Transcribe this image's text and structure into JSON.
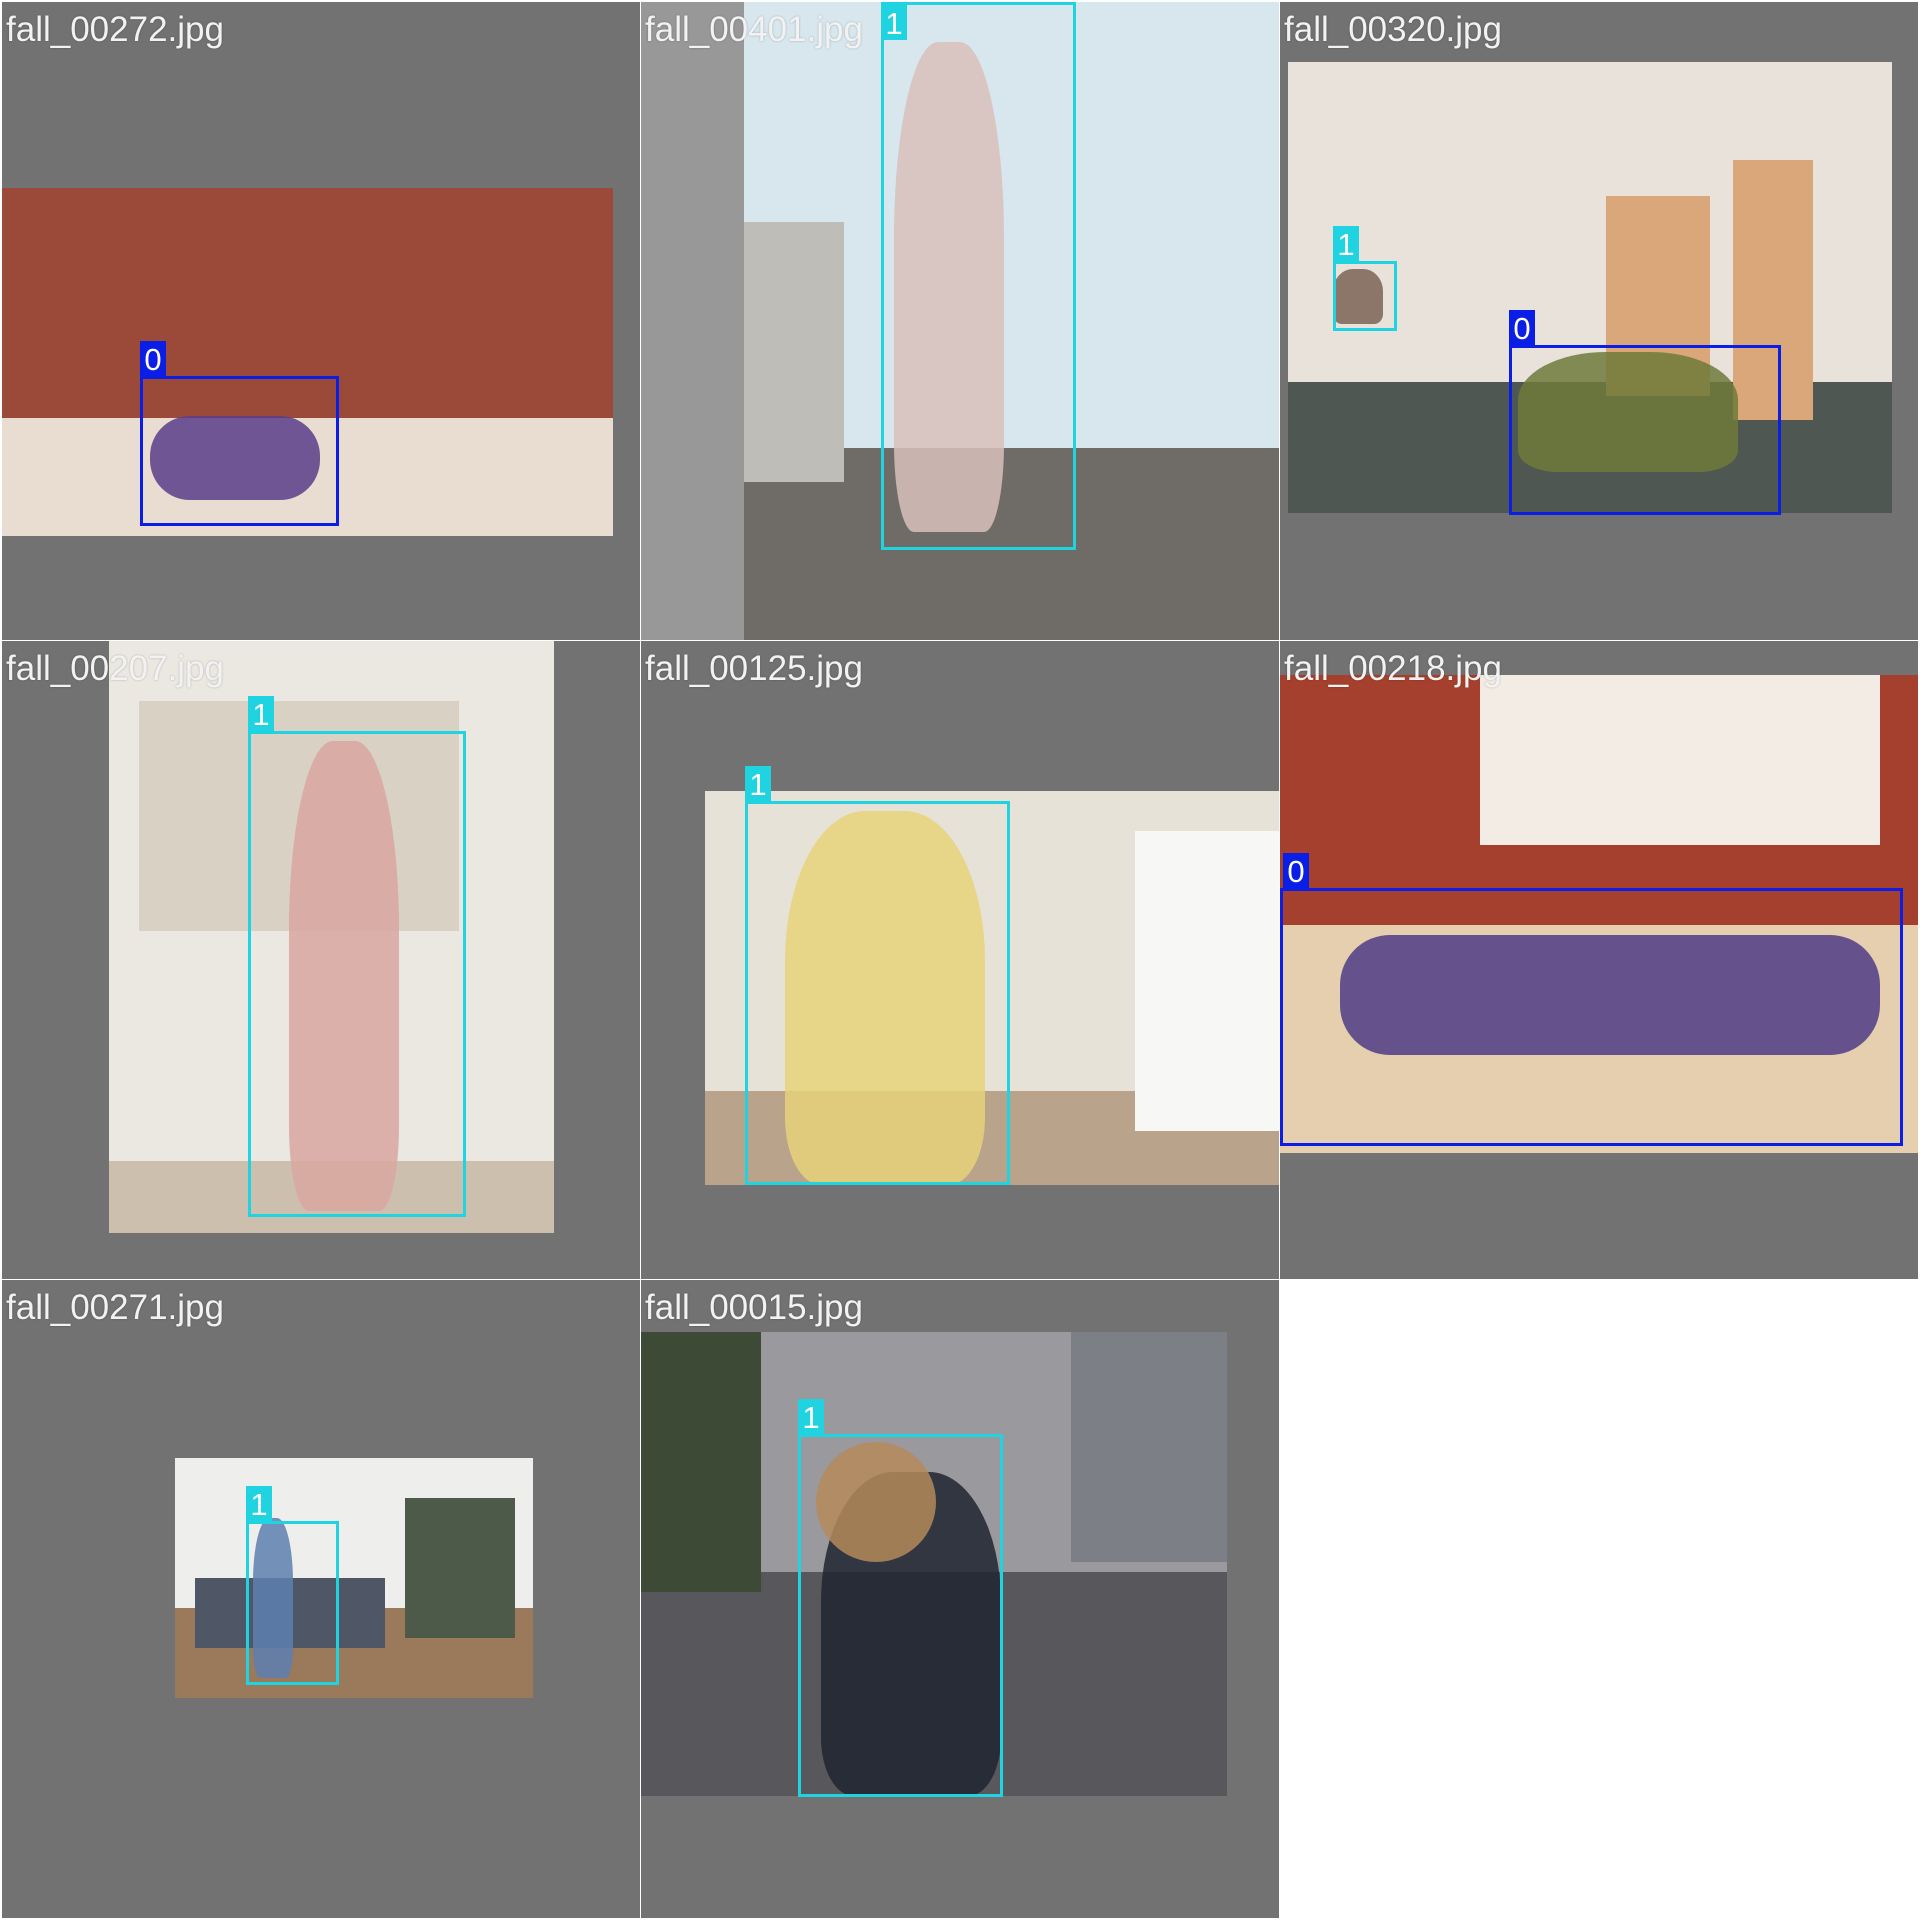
{
  "grid": {
    "columns": 3,
    "rows": 3,
    "tile_background": "#727272",
    "page_background": "#ffffff"
  },
  "classes": {
    "0": {
      "label": "0",
      "color": "#0b1ee6"
    },
    "1": {
      "label": "1",
      "color": "#1fd3e0"
    }
  },
  "tiles": [
    {
      "filename": "fall_00272.jpg",
      "scene": {
        "wall": "#9b4a3a",
        "floor": "#e8ddd0",
        "figure": "#5a3d8a"
      },
      "annotations": [
        {
          "class": "0"
        }
      ]
    },
    {
      "filename": "fall_00401.jpg",
      "scene": {
        "wall": "#d8e6ee",
        "floor": "#6f6c68",
        "figure": "#d9bfbb"
      },
      "annotations": [
        {
          "class": "1"
        }
      ]
    },
    {
      "filename": "fall_00320.jpg",
      "scene": {
        "wall": "#e9e2db",
        "floor": "#4f5753",
        "figure": "#6e7a3a"
      },
      "annotations": [
        {
          "class": "1"
        },
        {
          "class": "0"
        }
      ]
    },
    {
      "filename": "fall_00207.jpg",
      "scene": {
        "wall": "#ebe8e2",
        "floor": "#cdbfae",
        "figure": "#d8a6a0"
      },
      "annotations": [
        {
          "class": "1"
        }
      ]
    },
    {
      "filename": "fall_00125.jpg",
      "scene": {
        "wall": "#e7e2d7",
        "floor": "#b9a48b",
        "figure": "#e6d27a"
      },
      "annotations": [
        {
          "class": "1"
        }
      ]
    },
    {
      "filename": "fall_00218.jpg",
      "scene": {
        "wall": "#a6402e",
        "floor": "#e6cfae",
        "figure": "#4e3c86"
      },
      "annotations": [
        {
          "class": "0"
        }
      ]
    },
    {
      "filename": "fall_00271.jpg",
      "scene": {
        "wall": "#eeeeec",
        "floor": "#9a7a5a",
        "figure": "#5d7fb0"
      },
      "annotations": [
        {
          "class": "1"
        }
      ]
    },
    {
      "filename": "fall_00015.jpg",
      "scene": {
        "wall": "#9a9a9e",
        "floor": "#58585c",
        "figure": "#1f2430"
      },
      "annotations": [
        {
          "class": "1"
        }
      ]
    }
  ]
}
